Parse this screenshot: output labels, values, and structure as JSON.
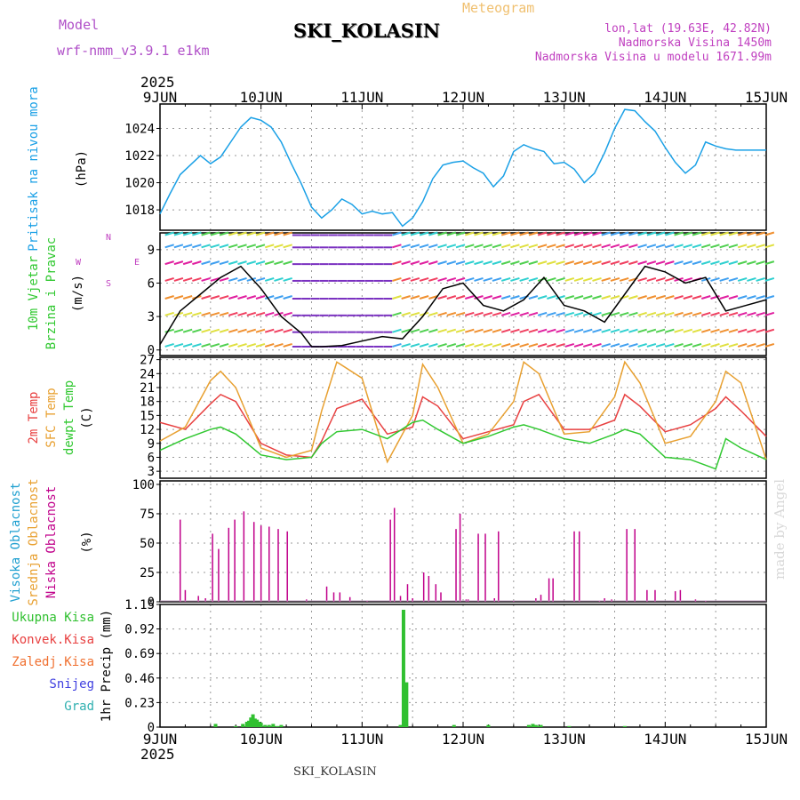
{
  "header": {
    "model_label": "Model",
    "model_name": "wrf-nmm_v3.9.1 e1km",
    "station": "SKI_KOLASIN",
    "chart_kind": "Meteogram",
    "lonlat": "lon,lat (19.63E, 42.82N)",
    "elevation": "Nadmorska Visina 1450m",
    "model_elevation": "Nadmorska Visina u modelu 1671.99m",
    "year_top": "2025",
    "year_bottom": "2025",
    "footer_station": "SKI_KOLASIN",
    "credit": "made by Angel"
  },
  "colors": {
    "pressure": "#1aa0e6",
    "temp2m": "#e84040",
    "sfc": "#e8a030",
    "dewpt": "#30c830",
    "precip": "#30c030",
    "cloud": "#c0008a",
    "magenta_label": "#c040c0"
  },
  "chart_data": [
    {
      "type": "line",
      "panel": "pressure",
      "ylabel": [
        "Pritisak na nivou mora",
        "(hPa)"
      ],
      "yticks": [
        1018,
        1020,
        1022,
        1024
      ],
      "ylim": [
        1016.5,
        1025.8
      ],
      "x_start": "9JUN",
      "x_end": "15JUN",
      "series": [
        {
          "name": "Pritisak na nivou mora",
          "x": [
            0,
            0.1,
            0.2,
            0.3,
            0.4,
            0.5,
            0.6,
            0.7,
            0.8,
            0.9,
            1.0,
            1.1,
            1.2,
            1.3,
            1.4,
            1.5,
            1.6,
            1.7,
            1.8,
            1.9,
            2.0,
            2.1,
            2.2,
            2.3,
            2.4,
            2.5,
            2.6,
            2.7,
            2.8,
            2.9,
            3.0,
            3.1,
            3.2,
            3.3,
            3.4,
            3.5,
            3.6,
            3.7,
            3.8,
            3.9,
            4.0,
            4.1,
            4.2,
            4.3,
            4.4,
            4.5,
            4.6,
            4.7,
            4.8,
            4.9,
            5.0,
            5.1,
            5.2,
            5.3,
            5.4,
            5.5,
            5.6,
            5.7,
            5.8,
            5.9,
            6.0
          ],
          "values": [
            1017.7,
            1019.2,
            1020.6,
            1021.3,
            1022.0,
            1021.4,
            1021.9,
            1023.0,
            1024.1,
            1024.8,
            1024.6,
            1024.1,
            1023.0,
            1021.4,
            1019.9,
            1018.2,
            1017.4,
            1018.0,
            1018.8,
            1018.4,
            1017.7,
            1017.9,
            1017.7,
            1017.8,
            1016.8,
            1017.4,
            1018.6,
            1020.3,
            1021.3,
            1021.5,
            1021.6,
            1021.1,
            1020.7,
            1019.7,
            1020.5,
            1022.3,
            1022.8,
            1022.5,
            1022.3,
            1021.4,
            1021.5,
            1021.0,
            1020.0,
            1020.7,
            1022.2,
            1024.0,
            1025.4,
            1025.3,
            1024.5,
            1023.8,
            1022.6,
            1021.5,
            1020.7,
            1021.3,
            1023.0,
            1022.7,
            1022.5,
            1022.4,
            1022.4,
            1022.4,
            1022.4
          ]
        }
      ]
    },
    {
      "type": "line",
      "panel": "wind",
      "ylabel": [
        "10m Vjetar",
        "Brzina i Pravac",
        "(m/s)"
      ],
      "compass": [
        "N",
        "S",
        "W",
        "E"
      ],
      "yticks": [
        0,
        3,
        6,
        9
      ],
      "ylim": [
        -0.5,
        10.5
      ],
      "series": [
        {
          "name": "10m Vjetar",
          "x": [
            0,
            0.2,
            0.4,
            0.6,
            0.8,
            1.0,
            1.2,
            1.4,
            1.5,
            1.6,
            1.8,
            2.0,
            2.2,
            2.4,
            2.6,
            2.8,
            3.0,
            3.2,
            3.4,
            3.6,
            3.8,
            4.0,
            4.2,
            4.4,
            4.6,
            4.8,
            5.0,
            5.2,
            5.4,
            5.6,
            5.8,
            6.0
          ],
          "values": [
            0.5,
            3.5,
            5.0,
            6.5,
            7.5,
            5.5,
            3.0,
            1.5,
            0.3,
            0.3,
            0.4,
            0.8,
            1.2,
            1.0,
            3.0,
            5.5,
            6.0,
            4.0,
            3.5,
            4.5,
            6.5,
            4.0,
            3.5,
            2.5,
            5.0,
            7.5,
            7.0,
            6.0,
            6.5,
            3.5,
            4.0,
            4.5
          ]
        }
      ]
    },
    {
      "type": "line",
      "panel": "temperature",
      "ylabel": [
        "2m Temp",
        "SFC Temp",
        "dewpt Temp",
        "(C)"
      ],
      "yticks": [
        3,
        6,
        9,
        12,
        15,
        18,
        21,
        24,
        27
      ],
      "ylim": [
        1.5,
        27.5
      ],
      "series": [
        {
          "name": "2m Temp",
          "x": [
            0,
            0.25,
            0.5,
            0.6,
            0.75,
            1.0,
            1.25,
            1.5,
            1.6,
            1.75,
            2.0,
            2.25,
            2.5,
            2.6,
            2.75,
            3.0,
            3.25,
            3.5,
            3.6,
            3.75,
            4.0,
            4.25,
            4.5,
            4.6,
            4.75,
            5.0,
            5.25,
            5.5,
            5.6,
            5.75,
            6.0
          ],
          "values": [
            13.5,
            12.0,
            17.5,
            19.5,
            18.0,
            9.0,
            6.5,
            6.0,
            9.5,
            16.5,
            18.5,
            11.0,
            12.5,
            19.0,
            17.0,
            10.0,
            11.5,
            13.0,
            18.0,
            19.5,
            12.0,
            12.0,
            14.0,
            19.5,
            17.0,
            11.5,
            13.0,
            16.5,
            19.0,
            16.0,
            10.5
          ]
        },
        {
          "name": "SFC Temp",
          "x": [
            0,
            0.25,
            0.5,
            0.6,
            0.75,
            1.0,
            1.25,
            1.5,
            1.6,
            1.75,
            2.0,
            2.25,
            2.5,
            2.6,
            2.75,
            3.0,
            3.25,
            3.5,
            3.6,
            3.75,
            4.0,
            4.25,
            4.5,
            4.6,
            4.75,
            5.0,
            5.25,
            5.5,
            5.6,
            5.75,
            6.0
          ],
          "values": [
            9.5,
            12.5,
            22.5,
            24.5,
            21.0,
            8.0,
            6.0,
            7.5,
            16.0,
            26.5,
            23.0,
            5.0,
            15.0,
            26.0,
            21.0,
            9.0,
            11.0,
            18.0,
            26.5,
            24.0,
            11.0,
            11.5,
            19.0,
            26.5,
            22.0,
            9.0,
            10.5,
            18.0,
            24.5,
            22.0,
            5.5
          ]
        },
        {
          "name": "dewpt Temp",
          "x": [
            0,
            0.25,
            0.5,
            0.6,
            0.75,
            1.0,
            1.25,
            1.5,
            1.6,
            1.75,
            2.0,
            2.25,
            2.5,
            2.6,
            2.75,
            3.0,
            3.25,
            3.5,
            3.6,
            3.75,
            4.0,
            4.25,
            4.5,
            4.6,
            4.75,
            5.0,
            5.25,
            5.5,
            5.6,
            5.75,
            6.0
          ],
          "values": [
            7.5,
            10.0,
            12.0,
            12.5,
            11.0,
            6.5,
            5.5,
            6.0,
            9.0,
            11.5,
            12.0,
            10.0,
            13.5,
            14.0,
            12.0,
            9.0,
            10.5,
            12.5,
            13.0,
            12.0,
            10.0,
            9.0,
            11.0,
            12.0,
            11.0,
            6.0,
            5.5,
            3.5,
            10.0,
            8.0,
            5.5
          ]
        }
      ]
    },
    {
      "type": "bar",
      "panel": "cloud",
      "ylabel": [
        "Visoka Oblacnost",
        "Srednja Oblacnost",
        "Niska Oblacnost",
        "(%)"
      ],
      "yticks": [
        0,
        25,
        50,
        75,
        100
      ],
      "ylim": [
        0,
        103
      ],
      "series": [
        {
          "name": "Niska Oblacnost",
          "x": [
            0.2,
            0.25,
            0.38,
            0.45,
            0.52,
            0.58,
            0.68,
            0.74,
            0.83,
            0.93,
            1.0,
            1.08,
            1.17,
            1.26,
            1.33,
            1.36,
            1.45,
            1.65,
            1.72,
            1.78,
            1.88,
            2.05,
            2.28,
            2.32,
            2.38,
            2.4,
            2.45,
            2.5,
            2.61,
            2.66,
            2.73,
            2.78,
            2.93,
            2.97,
            3.03,
            3.05,
            3.15,
            3.22,
            3.31,
            3.35,
            3.4,
            3.5,
            3.72,
            3.77,
            3.85,
            3.89,
            4.1,
            4.15,
            4.35,
            4.4,
            4.47,
            4.52,
            4.62,
            4.7,
            4.82,
            4.9,
            5.1,
            5.15,
            5.3,
            5.4,
            5.45,
            5.55,
            5.65,
            5.75,
            5.85,
            5.95
          ],
          "values": [
            70,
            10,
            5,
            3,
            58,
            45,
            63,
            70,
            77,
            68,
            65,
            64,
            62,
            60,
            0,
            0,
            2,
            13,
            8,
            8,
            4,
            1,
            70,
            80,
            5,
            0,
            15,
            3,
            25,
            22,
            15,
            8,
            62,
            75,
            2,
            2,
            58,
            58,
            3,
            60,
            0,
            1,
            3,
            6,
            20,
            20,
            60,
            60,
            1,
            3,
            2,
            0,
            62,
            62,
            10,
            10,
            9,
            10,
            2,
            1,
            0,
            0,
            0,
            0,
            0,
            0
          ]
        }
      ]
    },
    {
      "type": "bar",
      "panel": "precip",
      "ylabel": [
        "1hr Precip (mm)"
      ],
      "legend": [
        "Ukupna Kisa",
        "Konvek.Kisa",
        "Zaledj.Kisa",
        "Snijeg",
        "Grad"
      ],
      "yticks": [
        0,
        0.23,
        0.46,
        0.69,
        0.92,
        1.15
      ],
      "ylim": [
        0,
        1.15
      ],
      "series": [
        {
          "name": "Ukupna Kisa",
          "x": [
            0.55,
            0.75,
            0.82,
            0.86,
            0.88,
            0.9,
            0.92,
            0.94,
            0.96,
            0.98,
            1.0,
            1.04,
            1.08,
            1.12,
            1.16,
            1.2,
            2.38,
            2.41,
            2.44,
            2.91,
            3.25,
            3.65,
            3.69,
            3.72,
            3.74,
            3.77,
            4.05,
            4.6
          ],
          "values": [
            0.03,
            0.01,
            0.03,
            0.05,
            0.06,
            0.09,
            0.12,
            0.08,
            0.07,
            0.05,
            0.04,
            0.02,
            0.02,
            0.03,
            0.01,
            0.02,
            0.02,
            1.1,
            0.42,
            0.02,
            0.02,
            0.02,
            0.03,
            0.02,
            0.01,
            0.02,
            0.01,
            0.01
          ]
        }
      ]
    }
  ],
  "x_axis": {
    "labels_top": [
      "9JUN",
      "10JUN",
      "11JUN",
      "12JUN",
      "13JUN",
      "14JUN",
      "15JUN"
    ],
    "labels_bottom": [
      "9JUN",
      "10JUN",
      "11JUN",
      "12JUN",
      "13JUN",
      "14JUN",
      "15JUN"
    ]
  }
}
